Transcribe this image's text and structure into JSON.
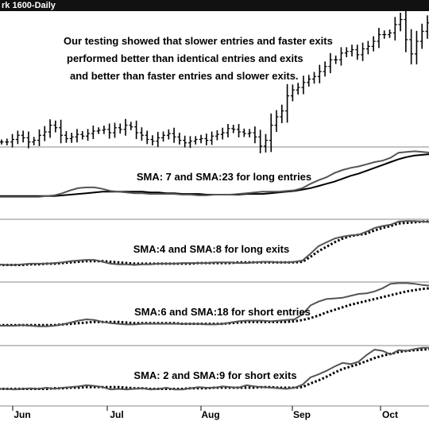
{
  "window": {
    "title": "rk 1600-Daily"
  },
  "chart_data": {
    "type": "line",
    "x_labels": [
      "Jun",
      "Jul",
      "Aug",
      "Sep",
      "Oct"
    ],
    "panels": [
      {
        "id": "price",
        "kind": "ohlc",
        "annotation": [
          "Our testing showed that slower entries and faster exits",
          "performed better than identical entries and exits",
          "and better than faster entries and slower exits."
        ],
        "ylim": [
          -6,
          155
        ],
        "close": [
          150,
          150,
          147,
          142,
          145,
          150,
          148,
          142,
          138,
          130,
          133,
          142,
          146,
          144,
          141,
          143,
          140,
          137,
          136,
          135,
          139,
          133,
          135,
          130,
          132,
          139,
          142,
          147,
          149,
          145,
          142,
          140,
          144,
          148,
          151,
          149,
          147,
          146,
          148,
          143,
          141,
          139,
          134,
          135,
          138,
          140,
          139,
          144,
          155,
          148,
          130,
          120,
          113,
          95,
          88,
          85,
          79,
          75,
          72,
          66,
          60,
          52,
          52,
          44,
          42,
          40,
          46,
          39,
          36,
          30,
          22,
          22,
          20,
          10,
          4,
          28,
          45,
          30,
          18,
          8
        ]
      },
      {
        "id": "p1",
        "kind": "ma_pair",
        "label": "SMA: 7 and SMA:23 for long entries",
        "fast_style": "solid-gray",
        "slow_style": "solid-black",
        "ylim": [
          0,
          100
        ],
        "fast": [
          70,
          70,
          70,
          70,
          70,
          70,
          69,
          68,
          65,
          61,
          58,
          57,
          57,
          59,
          62,
          63,
          64,
          65,
          65,
          66,
          66,
          66,
          66,
          67,
          67,
          68,
          68,
          67,
          67,
          67,
          66,
          65,
          64,
          63,
          63,
          63,
          62,
          61,
          58,
          52,
          47,
          43,
          37,
          33,
          30,
          28,
          25,
          22,
          20,
          16,
          9,
          8,
          7,
          8,
          9
        ],
        "slow": [
          69,
          69,
          69,
          69,
          69,
          69,
          69,
          69,
          68,
          67,
          66,
          65,
          64,
          63,
          63,
          63,
          63,
          63,
          63,
          64,
          64,
          65,
          65,
          66,
          66,
          66,
          67,
          67,
          67,
          67,
          67,
          66,
          66,
          66,
          65,
          64,
          63,
          62,
          60,
          58,
          55,
          52,
          49,
          45,
          41,
          38,
          34,
          30,
          26,
          22,
          18,
          15,
          13,
          12,
          11
        ]
      },
      {
        "id": "p2",
        "kind": "ma_pair",
        "label": "SMA:4 and SMA:8 for long exits",
        "fast_style": "solid-gray",
        "slow_style": "dotted-black",
        "ylim": [
          0,
          100
        ],
        "fast": [
          73,
          74,
          74,
          73,
          72,
          72,
          72,
          71,
          70,
          68,
          67,
          66,
          66,
          69,
          72,
          73,
          73,
          74,
          73,
          73,
          72,
          72,
          72,
          71,
          71,
          71,
          71,
          70,
          70,
          70,
          71,
          71,
          70,
          69,
          69,
          70,
          70,
          69,
          67,
          56,
          44,
          38,
          32,
          29,
          27,
          26,
          21,
          15,
          12,
          10,
          5,
          4,
          4,
          5,
          6
        ],
        "slow": [
          74,
          74,
          74,
          74,
          73,
          73,
          72,
          72,
          71,
          70,
          69,
          68,
          68,
          68,
          69,
          70,
          71,
          72,
          72,
          72,
          72,
          72,
          72,
          72,
          72,
          71,
          71,
          71,
          71,
          71,
          70,
          70,
          70,
          70,
          70,
          70,
          70,
          70,
          69,
          61,
          52,
          45,
          38,
          32,
          28,
          26,
          24,
          19,
          15,
          12,
          8,
          7,
          6,
          5,
          5
        ]
      },
      {
        "id": "p3",
        "kind": "ma_pair",
        "label": "SMA:6 and SMA:18 for short entries",
        "fast_style": "solid-gray",
        "slow_style": "dotted-black",
        "ylim": [
          0,
          100
        ],
        "fast": [
          70,
          70,
          70,
          69,
          70,
          71,
          71,
          70,
          68,
          65,
          62,
          60,
          61,
          64,
          66,
          67,
          68,
          68,
          67,
          67,
          67,
          67,
          67,
          67,
          67,
          67,
          68,
          68,
          67,
          65,
          63,
          62,
          62,
          62,
          63,
          62,
          61,
          60,
          52,
          38,
          32,
          28,
          27,
          26,
          23,
          20,
          19,
          16,
          11,
          4,
          3,
          3,
          4,
          6,
          7
        ],
        "slow": [
          69,
          69,
          69,
          69,
          69,
          69,
          69,
          69,
          68,
          67,
          66,
          65,
          64,
          64,
          64,
          64,
          65,
          66,
          66,
          66,
          66,
          66,
          66,
          67,
          67,
          67,
          67,
          67,
          67,
          66,
          65,
          64,
          64,
          64,
          64,
          64,
          64,
          63,
          61,
          58,
          54,
          49,
          45,
          41,
          37,
          34,
          31,
          28,
          25,
          22,
          19,
          16,
          14,
          12,
          11
        ]
      },
      {
        "id": "p4",
        "kind": "ma_pair",
        "label": "SMA: 2 and SMA:9 for short exits",
        "fast_style": "solid-gray",
        "slow_style": "dotted-black",
        "ylim": [
          0,
          100
        ],
        "fast": [
          73,
          73,
          74,
          73,
          72,
          73,
          71,
          73,
          71,
          70,
          69,
          67,
          68,
          70,
          74,
          73,
          74,
          73,
          72,
          74,
          73,
          71,
          74,
          74,
          72,
          70,
          71,
          71,
          69,
          70,
          71,
          67,
          69,
          70,
          71,
          72,
          73,
          71,
          66,
          54,
          49,
          43,
          36,
          30,
          32,
          28,
          17,
          8,
          10,
          16,
          9,
          10,
          7,
          5,
          5
        ],
        "slow": [
          73,
          73,
          73,
          73,
          73,
          73,
          73,
          72,
          72,
          71,
          71,
          70,
          70,
          70,
          70,
          70,
          71,
          72,
          72,
          73,
          73,
          73,
          73,
          73,
          72,
          72,
          72,
          71,
          71,
          71,
          71,
          71,
          71,
          70,
          70,
          71,
          71,
          71,
          70,
          64,
          59,
          53,
          46,
          40,
          36,
          32,
          27,
          22,
          18,
          15,
          12,
          10,
          9,
          8,
          7
        ]
      }
    ]
  }
}
